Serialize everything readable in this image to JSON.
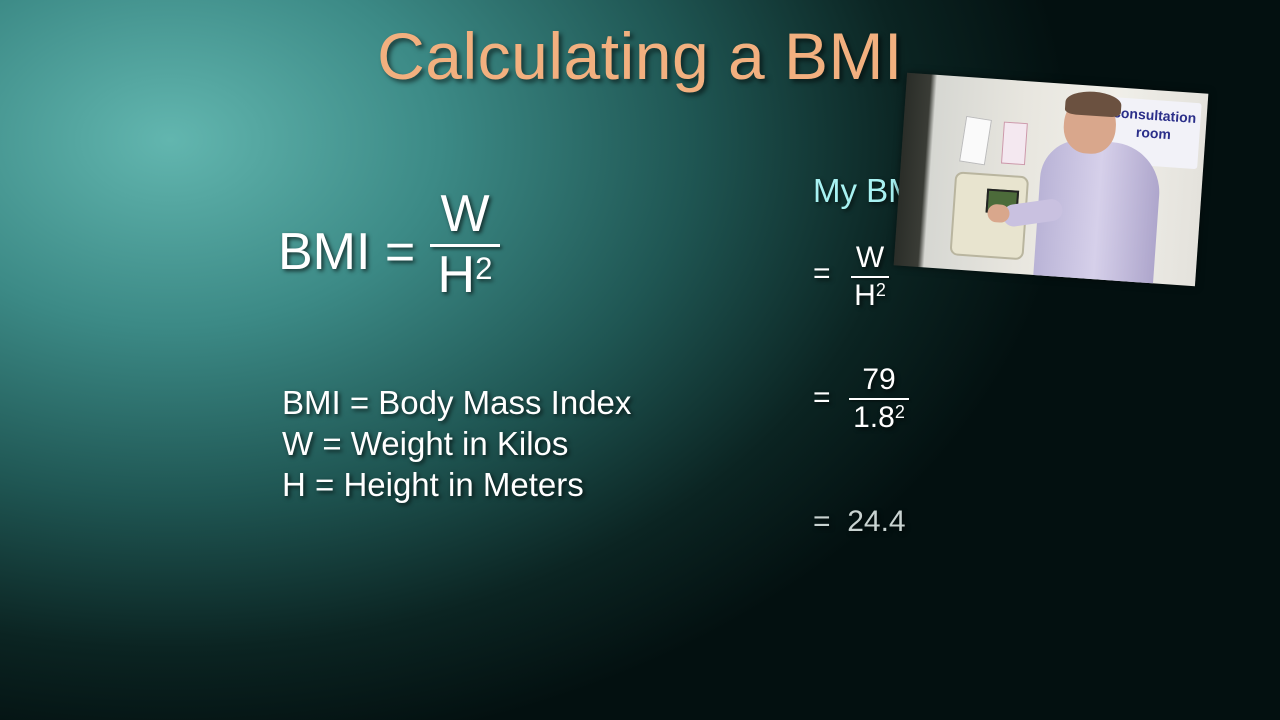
{
  "slide": {
    "title": "Calculating a BMI"
  },
  "formula": {
    "lhs": "BMI =",
    "numerator": "W",
    "denominator": "H",
    "exponent": "2"
  },
  "definitions": [
    "BMI = Body Mass Index",
    "W = Weight in Kilos",
    "H = Height in Meters"
  ],
  "my_bmi": {
    "heading": "My BMI",
    "step1": {
      "eq": "=",
      "numerator": "W",
      "denominator": "H",
      "exponent": "2"
    },
    "step2": {
      "eq": "=",
      "numerator": "79",
      "denominator": "1.8",
      "exponent": "2"
    },
    "result": {
      "eq": "=",
      "value": "24.4"
    }
  },
  "photo": {
    "sign_text": "consultation room"
  },
  "colors": {
    "title": "#f2b07f",
    "my_bmi_heading": "#a8f2f2",
    "result": "#c9d3d1"
  }
}
